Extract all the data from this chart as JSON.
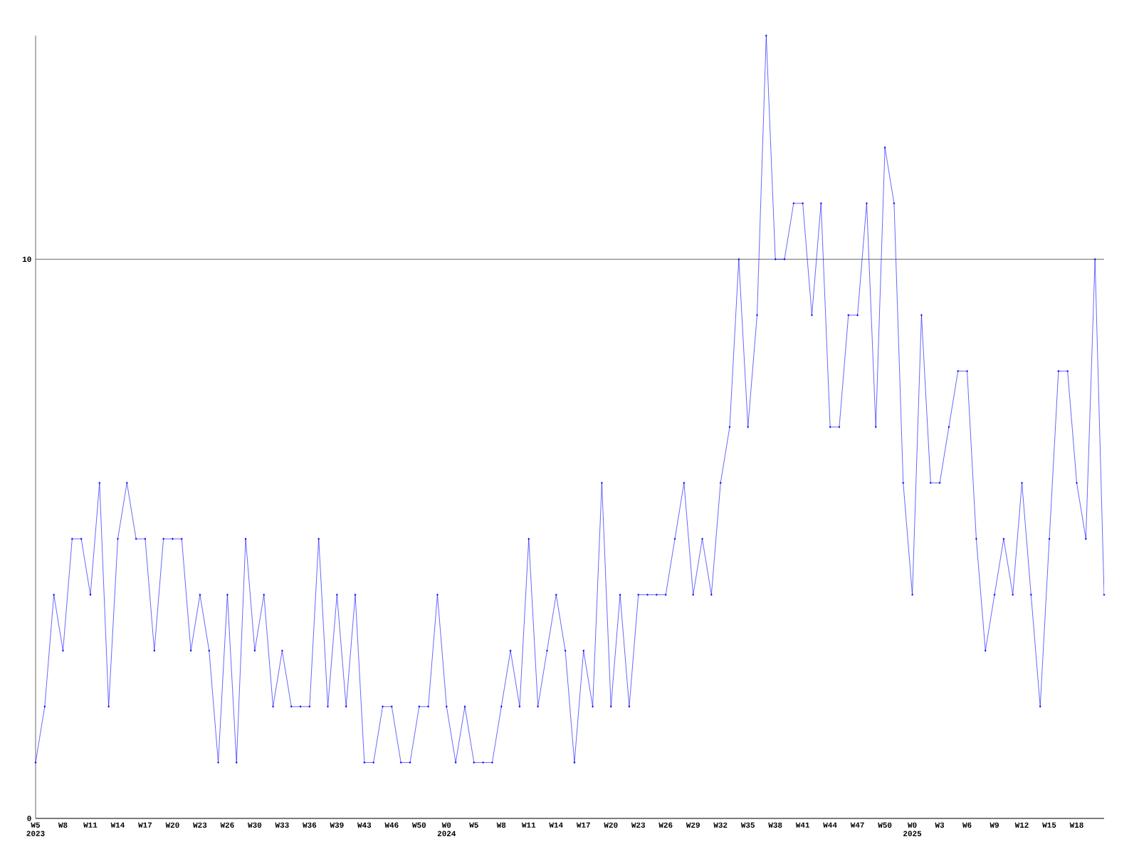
{
  "chart_data": {
    "type": "line",
    "categories": [
      "W5 2023",
      null,
      null,
      "W8",
      null,
      null,
      "W11",
      null,
      null,
      "W14",
      null,
      null,
      "W17",
      null,
      null,
      "W20",
      null,
      null,
      "W23",
      null,
      null,
      "W26",
      null,
      null,
      "W30",
      null,
      null,
      "W33",
      null,
      null,
      "W36",
      null,
      null,
      "W39",
      null,
      null,
      "W43",
      null,
      null,
      "W46",
      null,
      null,
      "W50",
      null,
      null,
      "W0 2024",
      null,
      null,
      "W5",
      null,
      null,
      "W8",
      null,
      null,
      "W11",
      null,
      null,
      "W14",
      null,
      null,
      "W17",
      null,
      null,
      "W20",
      null,
      null,
      "W23",
      null,
      null,
      "W26",
      null,
      null,
      "W29",
      null,
      null,
      "W32",
      null,
      null,
      "W35",
      null,
      null,
      "W38",
      null,
      null,
      "W41",
      null,
      null,
      "W44",
      null,
      null,
      "W47",
      null,
      null,
      "W50",
      null,
      null,
      "W0 2025",
      null,
      null,
      "W3",
      null,
      null,
      "W6",
      null,
      null,
      "W9",
      null,
      null,
      "W12",
      null,
      null,
      "W15",
      null,
      null,
      "W18",
      null,
      null,
      null
    ],
    "series": [
      {
        "color": "#0000ff",
        "values": [
          1,
          2,
          4,
          3,
          5,
          5,
          4,
          6,
          2,
          5,
          6,
          5,
          5,
          3,
          5,
          5,
          5,
          3,
          4,
          3,
          1,
          4,
          1,
          5,
          3,
          4,
          2,
          3,
          2,
          2,
          2,
          5,
          2,
          4,
          2,
          4,
          1,
          1,
          2,
          2,
          1,
          1,
          2,
          2,
          4,
          2,
          1,
          2,
          1,
          1,
          1,
          2,
          3,
          2,
          5,
          2,
          3,
          4,
          3,
          1,
          3,
          2,
          6,
          2,
          4,
          2,
          4,
          4,
          4,
          4,
          5,
          6,
          4,
          5,
          4,
          6,
          7,
          10,
          7,
          9,
          14,
          10,
          10,
          11,
          11,
          9,
          11,
          7,
          7,
          9,
          9,
          11,
          7,
          12,
          11,
          6,
          4,
          9,
          6,
          6,
          7,
          8,
          8,
          5,
          3,
          4,
          5,
          4,
          6,
          4,
          2,
          5,
          8,
          8,
          6,
          5,
          10,
          4
        ]
      }
    ],
    "ylim": [
      0,
      14
    ],
    "yticks": [
      0,
      10
    ],
    "grid": "y",
    "marker": "diamond",
    "line_style": "solid"
  }
}
